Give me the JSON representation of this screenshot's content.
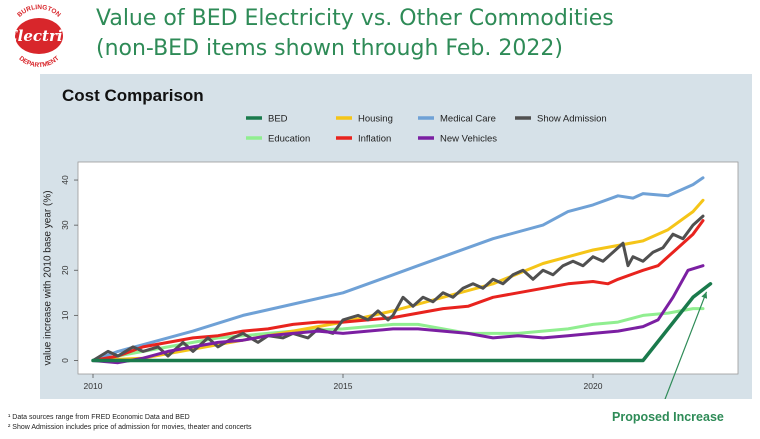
{
  "header": {
    "title_line1": "Value of BED Electricity vs. Other Commodities",
    "title_line2": "(non-BED items shown through Feb. 2022)"
  },
  "logo": {
    "top_text": "BURLINGTON",
    "main_text": "Electric",
    "bottom_text": "DEPARTMENT",
    "color": "#d8262b"
  },
  "footnotes": {
    "note1": "¹ Data sources range from FRED Economic Data and BED",
    "note2": "² Show Admission includes price of admission for movies, theater and concerts"
  },
  "annotation": {
    "label": "Proposed Increase",
    "color": "#2e8b57"
  },
  "chart_data": {
    "type": "line",
    "title": "Cost Comparison",
    "ylabel": "value increase with 2010 base year (%)",
    "xlabel": "",
    "xlim": [
      2009.7,
      2022.9
    ],
    "ylim": [
      -3,
      44
    ],
    "x_ticks": [
      2010,
      2015,
      2020
    ],
    "y_ticks": [
      0,
      10,
      20,
      30,
      40
    ],
    "grid": false,
    "legend_position": "top",
    "series": [
      {
        "name": "BED",
        "color": "#1a7a4c",
        "width": 3.5,
        "points": [
          [
            2010.0,
            0
          ],
          [
            2021.0,
            0
          ],
          [
            2022.0,
            14
          ],
          [
            2022.35,
            17
          ]
        ]
      },
      {
        "name": "Housing",
        "color": "#f5c518",
        "width": 3,
        "points": [
          [
            2010.0,
            0
          ],
          [
            2011.0,
            0.5
          ],
          [
            2012.0,
            2.5
          ],
          [
            2013.0,
            4.5
          ],
          [
            2014.0,
            6.5
          ],
          [
            2015.0,
            8.5
          ],
          [
            2016.0,
            11
          ],
          [
            2017.0,
            14
          ],
          [
            2018.0,
            17
          ],
          [
            2019.0,
            21.5
          ],
          [
            2020.0,
            24.5
          ],
          [
            2021.0,
            26.5
          ],
          [
            2021.5,
            29
          ],
          [
            2022.0,
            33
          ],
          [
            2022.2,
            35.5
          ]
        ]
      },
      {
        "name": "Medical Care",
        "color": "#6fa1d6",
        "width": 3,
        "points": [
          [
            2010.0,
            0
          ],
          [
            2010.5,
            2
          ],
          [
            2011.0,
            3.5
          ],
          [
            2012.0,
            6.5
          ],
          [
            2013.0,
            10
          ],
          [
            2014.0,
            12.5
          ],
          [
            2015.0,
            15
          ],
          [
            2015.5,
            17
          ],
          [
            2016.0,
            19
          ],
          [
            2016.5,
            21
          ],
          [
            2017.0,
            23
          ],
          [
            2017.5,
            25
          ],
          [
            2018.0,
            27
          ],
          [
            2019.0,
            30
          ],
          [
            2019.5,
            33
          ],
          [
            2020.0,
            34.5
          ],
          [
            2020.5,
            36.5
          ],
          [
            2020.8,
            36
          ],
          [
            2021.0,
            37
          ],
          [
            2021.5,
            36.5
          ],
          [
            2022.0,
            39
          ],
          [
            2022.2,
            40.5
          ]
        ]
      },
      {
        "name": "Show Admission",
        "color": "#505050",
        "width": 3,
        "points": [
          [
            2010.0,
            0
          ],
          [
            2010.3,
            2
          ],
          [
            2010.5,
            1
          ],
          [
            2010.8,
            3
          ],
          [
            2011.0,
            2
          ],
          [
            2011.3,
            3
          ],
          [
            2011.5,
            1
          ],
          [
            2011.8,
            4
          ],
          [
            2012.0,
            2
          ],
          [
            2012.3,
            5
          ],
          [
            2012.5,
            3
          ],
          [
            2012.8,
            5
          ],
          [
            2013.0,
            6
          ],
          [
            2013.3,
            4
          ],
          [
            2013.5,
            5.5
          ],
          [
            2013.8,
            5
          ],
          [
            2014.0,
            6
          ],
          [
            2014.3,
            5
          ],
          [
            2014.5,
            7
          ],
          [
            2014.8,
            6
          ],
          [
            2015.0,
            9
          ],
          [
            2015.3,
            10
          ],
          [
            2015.5,
            9
          ],
          [
            2015.7,
            11
          ],
          [
            2015.9,
            9
          ],
          [
            2016.0,
            10
          ],
          [
            2016.2,
            14
          ],
          [
            2016.4,
            12
          ],
          [
            2016.6,
            14
          ],
          [
            2016.8,
            13
          ],
          [
            2017.0,
            15
          ],
          [
            2017.2,
            14
          ],
          [
            2017.4,
            16
          ],
          [
            2017.6,
            17
          ],
          [
            2017.8,
            16
          ],
          [
            2018.0,
            18
          ],
          [
            2018.2,
            17
          ],
          [
            2018.4,
            19
          ],
          [
            2018.6,
            20
          ],
          [
            2018.8,
            18
          ],
          [
            2019.0,
            20
          ],
          [
            2019.2,
            19
          ],
          [
            2019.4,
            21
          ],
          [
            2019.6,
            22
          ],
          [
            2019.8,
            21
          ],
          [
            2020.0,
            23
          ],
          [
            2020.2,
            22
          ],
          [
            2020.4,
            24
          ],
          [
            2020.6,
            26
          ],
          [
            2020.7,
            21
          ],
          [
            2020.8,
            23
          ],
          [
            2021.0,
            22
          ],
          [
            2021.2,
            24
          ],
          [
            2021.4,
            25
          ],
          [
            2021.6,
            28
          ],
          [
            2021.8,
            27
          ],
          [
            2022.0,
            30
          ],
          [
            2022.2,
            32
          ]
        ]
      },
      {
        "name": "Education",
        "color": "#90ee90",
        "width": 3,
        "points": [
          [
            2010.0,
            0
          ],
          [
            2010.5,
            1
          ],
          [
            2011.0,
            2
          ],
          [
            2011.5,
            3
          ],
          [
            2012.0,
            4
          ],
          [
            2012.5,
            5
          ],
          [
            2013.0,
            5.5
          ],
          [
            2014.0,
            6.5
          ],
          [
            2015.0,
            7
          ],
          [
            2016.0,
            8
          ],
          [
            2016.5,
            8
          ],
          [
            2017.0,
            7
          ],
          [
            2017.5,
            6
          ],
          [
            2018.0,
            6
          ],
          [
            2018.5,
            6
          ],
          [
            2019.0,
            6.5
          ],
          [
            2019.5,
            7
          ],
          [
            2020.0,
            8
          ],
          [
            2020.5,
            8.5
          ],
          [
            2021.0,
            10
          ],
          [
            2021.5,
            10.5
          ],
          [
            2022.0,
            11.5
          ],
          [
            2022.2,
            11.5
          ]
        ]
      },
      {
        "name": "Inflation",
        "color": "#e8231e",
        "width": 3,
        "points": [
          [
            2010.0,
            0
          ],
          [
            2010.5,
            1
          ],
          [
            2011.0,
            3
          ],
          [
            2011.5,
            4
          ],
          [
            2012.0,
            5
          ],
          [
            2012.5,
            5.5
          ],
          [
            2013.0,
            6.5
          ],
          [
            2013.5,
            7
          ],
          [
            2014.0,
            8
          ],
          [
            2014.5,
            8.5
          ],
          [
            2015.0,
            8.5
          ],
          [
            2015.5,
            9
          ],
          [
            2016.0,
            9.5
          ],
          [
            2016.5,
            10.5
          ],
          [
            2017.0,
            11.5
          ],
          [
            2017.5,
            12
          ],
          [
            2018.0,
            14
          ],
          [
            2018.5,
            15
          ],
          [
            2019.0,
            16
          ],
          [
            2019.5,
            17
          ],
          [
            2020.0,
            17.5
          ],
          [
            2020.3,
            17
          ],
          [
            2020.5,
            18
          ],
          [
            2021.0,
            20
          ],
          [
            2021.3,
            21
          ],
          [
            2021.6,
            24
          ],
          [
            2022.0,
            28
          ],
          [
            2022.2,
            31
          ]
        ]
      },
      {
        "name": "New Vehicles",
        "color": "#7b1fa2",
        "width": 3,
        "points": [
          [
            2010.0,
            0
          ],
          [
            2010.5,
            -0.5
          ],
          [
            2011.0,
            0.5
          ],
          [
            2011.5,
            2
          ],
          [
            2012.0,
            3
          ],
          [
            2012.5,
            4
          ],
          [
            2013.0,
            4.5
          ],
          [
            2013.5,
            5.5
          ],
          [
            2014.0,
            6
          ],
          [
            2014.5,
            6.5
          ],
          [
            2015.0,
            6
          ],
          [
            2015.5,
            6.5
          ],
          [
            2016.0,
            7
          ],
          [
            2016.5,
            7
          ],
          [
            2017.0,
            6.5
          ],
          [
            2017.5,
            6
          ],
          [
            2018.0,
            5
          ],
          [
            2018.5,
            5.5
          ],
          [
            2019.0,
            5
          ],
          [
            2019.5,
            5.5
          ],
          [
            2020.0,
            6
          ],
          [
            2020.5,
            6.5
          ],
          [
            2021.0,
            7.5
          ],
          [
            2021.3,
            9
          ],
          [
            2021.6,
            14
          ],
          [
            2021.9,
            20
          ],
          [
            2022.2,
            21
          ]
        ]
      }
    ]
  }
}
